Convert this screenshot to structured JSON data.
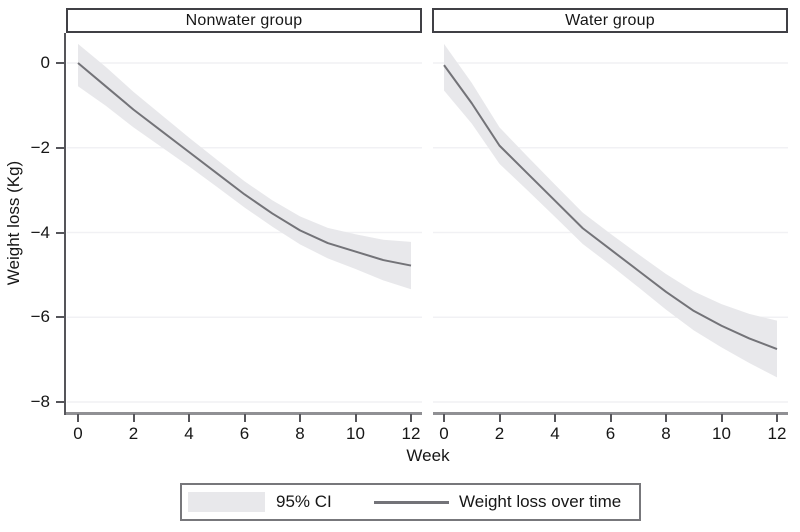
{
  "figure": {
    "background": "#ffffff",
    "xlabel": "Week",
    "ylabel": "Weight loss (Kg)"
  },
  "chart_data": {
    "type": "line",
    "subtype": "two-panel line chart with 95% confidence band",
    "xlabel": "Week",
    "ylabel": "Weight loss (Kg)",
    "x_weeks": [
      0,
      1,
      2,
      3,
      4,
      5,
      6,
      7,
      8,
      9,
      10,
      11,
      12
    ],
    "xticks": [
      0,
      2,
      4,
      6,
      8,
      10,
      12
    ],
    "yticks": [
      0,
      -2,
      -4,
      -6,
      -8
    ],
    "xlim": [
      -0.4,
      12.5
    ],
    "ylim": [
      -8.3,
      0.72
    ],
    "grid": "faint horizontal gridlines at each y tick",
    "legend_position": "bottom-center",
    "panels": [
      {
        "title": "Nonwater group",
        "series": [
          {
            "name": "Weight loss over time",
            "values": [
              0,
              -0.55,
              -1.1,
              -1.6,
              -2.1,
              -2.6,
              -3.1,
              -3.55,
              -3.95,
              -4.25,
              -4.45,
              -4.65,
              -4.78
            ],
            "ci_upper": [
              0.45,
              -0.09,
              -0.68,
              -1.22,
              -1.76,
              -2.28,
              -2.79,
              -3.24,
              -3.62,
              -3.89,
              -4.04,
              -4.17,
              -4.22
            ],
            "ci_lower": [
              -0.55,
              -1.01,
              -1.52,
              -1.98,
              -2.44,
              -2.92,
              -3.41,
              -3.86,
              -4.28,
              -4.61,
              -4.86,
              -5.13,
              -5.34
            ]
          }
        ]
      },
      {
        "title": "Water group",
        "series": [
          {
            "name": "Weight loss over time",
            "values": [
              -0.05,
              -0.95,
              -1.95,
              -2.6,
              -3.25,
              -3.9,
              -4.4,
              -4.9,
              -5.4,
              -5.85,
              -6.2,
              -6.5,
              -6.75
            ],
            "ci_upper": [
              0.45,
              -0.47,
              -1.52,
              -2.2,
              -2.87,
              -3.53,
              -4.03,
              -4.51,
              -4.98,
              -5.39,
              -5.69,
              -5.92,
              -6.08
            ],
            "ci_lower": [
              -0.65,
              -1.43,
              -2.38,
              -3.0,
              -3.63,
              -4.27,
              -4.77,
              -5.29,
              -5.82,
              -6.31,
              -6.71,
              -7.08,
              -7.42
            ]
          }
        ]
      }
    ],
    "legend_items": [
      {
        "label": "95% CI",
        "swatch": "band"
      },
      {
        "label": "Weight loss over time",
        "swatch": "line"
      }
    ],
    "colors": {
      "band": "#e8e8eb",
      "line": "#737378",
      "axis": "#55555a",
      "x_axis_line": "#909094",
      "grid": "#f1f1f4",
      "box_border": "#404045",
      "legend_border": "#77777b",
      "text": "#161616"
    }
  }
}
